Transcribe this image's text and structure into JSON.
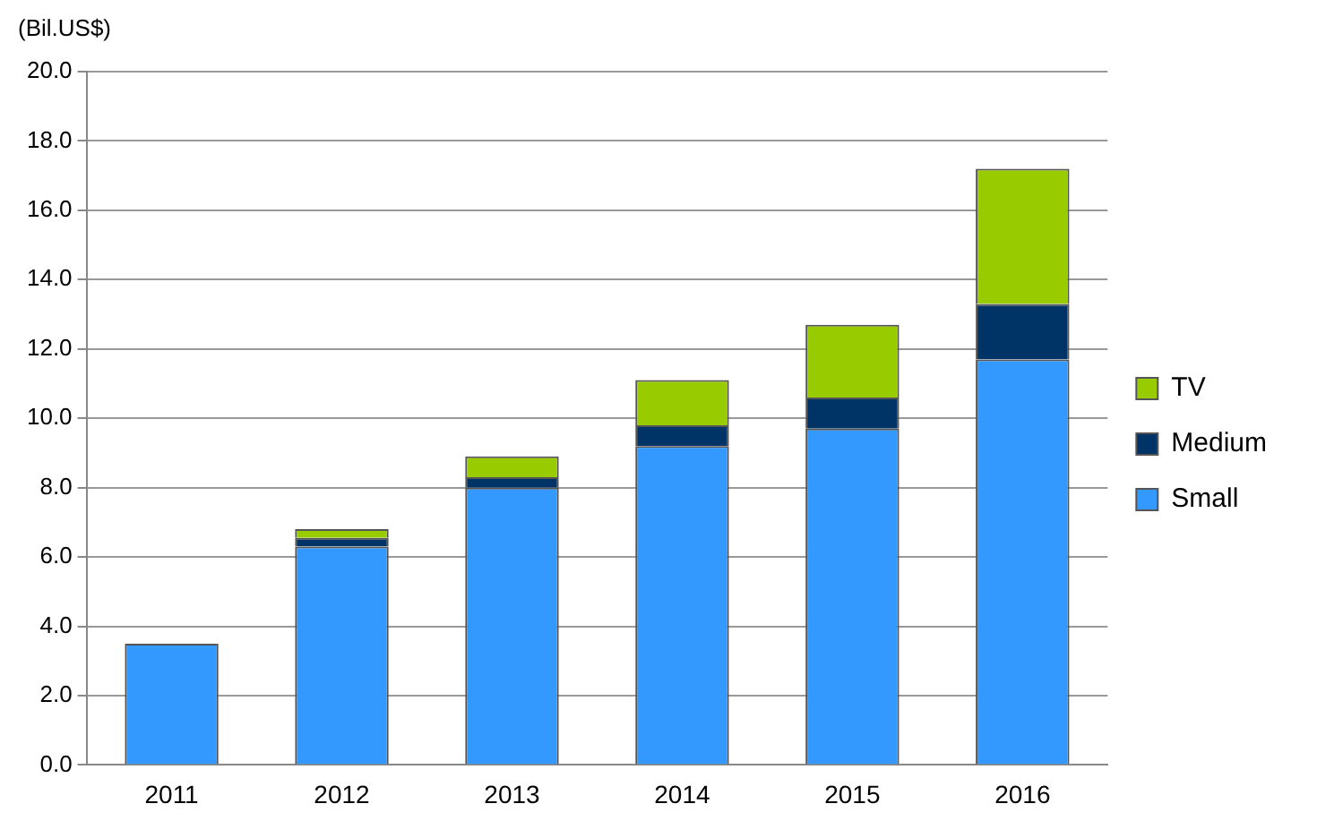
{
  "chart_data": {
    "type": "bar",
    "stacked": true,
    "ylabel": "(Bil.US$)",
    "categories": [
      "2011",
      "2012",
      "2013",
      "2014",
      "2015",
      "2016"
    ],
    "series": [
      {
        "name": "Small",
        "color": "#3399ff",
        "values": [
          3.5,
          6.3,
          8.0,
          9.2,
          9.7,
          11.7
        ]
      },
      {
        "name": "Medium",
        "color": "#003366",
        "values": [
          0,
          0.25,
          0.3,
          0.6,
          0.9,
          1.6
        ]
      },
      {
        "name": "TV",
        "color": "#99cc00",
        "values": [
          0,
          0.25,
          0.6,
          1.3,
          2.1,
          3.9
        ]
      }
    ],
    "ylim": [
      0,
      20
    ],
    "yticks": [
      {
        "value": 0,
        "label": "0.0"
      },
      {
        "value": 2,
        "label": "2.0"
      },
      {
        "value": 4,
        "label": "4.0"
      },
      {
        "value": 6,
        "label": "6.0"
      },
      {
        "value": 8,
        "label": "8.0"
      },
      {
        "value": 10,
        "label": "10.0"
      },
      {
        "value": 12,
        "label": "12.0"
      },
      {
        "value": 14,
        "label": "14.0"
      },
      {
        "value": 16,
        "label": "16.0"
      },
      {
        "value": 18,
        "label": "18.0"
      },
      {
        "value": 20,
        "label": "20.0"
      }
    ],
    "grid": "y",
    "legend": "right"
  }
}
